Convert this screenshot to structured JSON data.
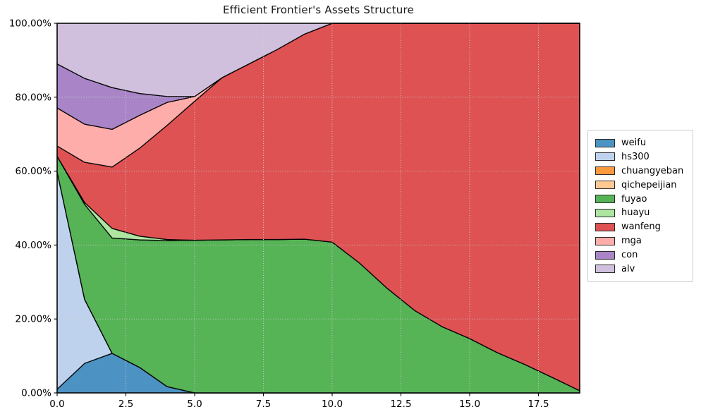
{
  "title": "Efficient Frontier's Assets Structure",
  "chart_data": {
    "type": "area",
    "stacked": true,
    "title": "Efficient Frontier's Assets Structure",
    "unit": "%",
    "x": [
      0,
      1,
      2,
      3,
      4,
      5,
      6,
      7,
      8,
      9,
      10,
      11,
      12,
      13,
      14,
      15,
      16,
      17,
      18,
      19
    ],
    "xlim": [
      0,
      19
    ],
    "ylim": [
      0,
      100
    ],
    "x_tick_values": [
      0,
      2.5,
      5,
      7.5,
      10,
      12.5,
      15,
      17.5
    ],
    "x_tick_labels": [
      "0.0",
      "2.5",
      "5.0",
      "7.5",
      "10.0",
      "12.5",
      "15.0",
      "17.5"
    ],
    "y_tick_values": [
      0,
      20,
      40,
      60,
      80,
      100
    ],
    "y_tick_labels": [
      "0.00%",
      "20.00%",
      "40.00%",
      "60.00%",
      "80.00%",
      "100.00%"
    ],
    "grid": "dotted",
    "grid_color": "#cccccc",
    "edge_color": "#000000",
    "legend_position": "center-right",
    "series": [
      {
        "name": "weifu",
        "color": "#4c92c3",
        "values": [
          1.0,
          8.0,
          10.7,
          6.9,
          1.7,
          0,
          0,
          0,
          0,
          0,
          0,
          0,
          0,
          0,
          0,
          0,
          0,
          0,
          0,
          0
        ]
      },
      {
        "name": "hs300",
        "color": "#bed2ed",
        "values": [
          58.8,
          17.3,
          0,
          0,
          0,
          0,
          0,
          0,
          0,
          0,
          0,
          0,
          0,
          0,
          0,
          0,
          0,
          0,
          0,
          0
        ]
      },
      {
        "name": "chuangyeban",
        "color": "#ff993e",
        "values": [
          0,
          0,
          0,
          0,
          0,
          0,
          0,
          0,
          0,
          0,
          0,
          0,
          0,
          0,
          0,
          0,
          0,
          0,
          0,
          0
        ]
      },
      {
        "name": "qichepeijian",
        "color": "#ffc993",
        "values": [
          0,
          0,
          0,
          0,
          0,
          0,
          0,
          0,
          0,
          0,
          0,
          0,
          0,
          0,
          0,
          0,
          0,
          0,
          0,
          0
        ]
      },
      {
        "name": "fuyao",
        "color": "#56b356",
        "values": [
          4.2,
          25.7,
          31.2,
          34.5,
          39.5,
          41.3,
          41.4,
          41.5,
          41.5,
          41.6,
          40.8,
          35.1,
          28.3,
          22.3,
          17.9,
          14.7,
          10.9,
          7.7,
          4.2,
          0.6
        ]
      },
      {
        "name": "huayu",
        "color": "#ade5a1",
        "values": [
          0,
          0.5,
          2.6,
          1.0,
          0.3,
          0,
          0,
          0,
          0,
          0,
          0,
          0,
          0,
          0,
          0,
          0,
          0,
          0,
          0,
          0
        ]
      },
      {
        "name": "wanfeng",
        "color": "#de5253",
        "values": [
          2.8,
          10.9,
          16.6,
          23.8,
          30.9,
          37.6,
          43.9,
          47.6,
          51.4,
          55.5,
          59.2,
          64.9,
          71.7,
          77.7,
          82.1,
          85.3,
          89.1,
          92.3,
          95.8,
          99.4
        ]
      },
      {
        "name": "mga",
        "color": "#ffadab",
        "values": [
          10.3,
          10.3,
          10.2,
          8.9,
          6.2,
          1.3,
          0,
          0,
          0,
          0,
          0,
          0,
          0,
          0,
          0,
          0,
          0,
          0,
          0,
          0
        ]
      },
      {
        "name": "con",
        "color": "#a985c8",
        "values": [
          11.9,
          12.4,
          11.3,
          5.9,
          1.6,
          0,
          0,
          0,
          0,
          0,
          0,
          0,
          0,
          0,
          0,
          0,
          0,
          0,
          0,
          0
        ]
      },
      {
        "name": "alv",
        "color": "#d0c0dd",
        "values": [
          11.0,
          14.9,
          17.4,
          19.0,
          19.8,
          19.8,
          14.7,
          10.9,
          7.1,
          2.9,
          0,
          0,
          0,
          0,
          0,
          0,
          0,
          0,
          0,
          0
        ]
      }
    ]
  }
}
